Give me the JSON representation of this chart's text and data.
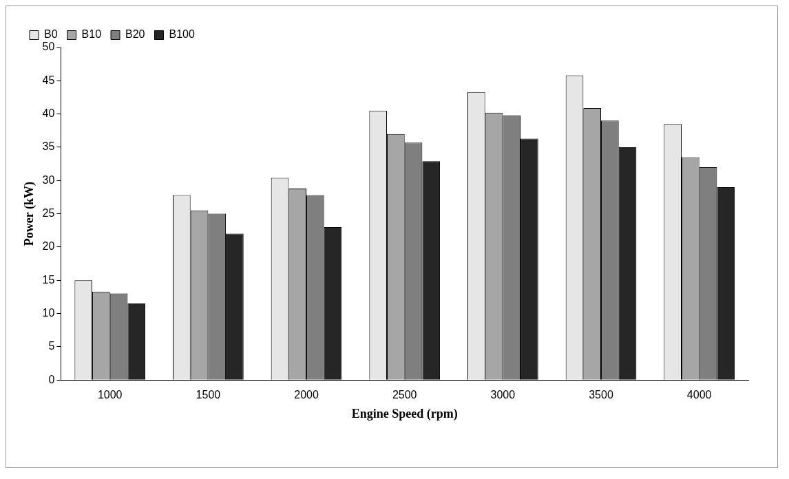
{
  "chart_data": {
    "type": "bar",
    "xlabel": "Engine Speed (rpm)",
    "ylabel": "Power (kW)",
    "categories": [
      "1000",
      "1500",
      "2000",
      "2500",
      "3000",
      "3500",
      "4000"
    ],
    "series": [
      {
        "name": "B0",
        "color": "#e6e6e6",
        "values": [
          15,
          27.8,
          30.4,
          40.5,
          43.3,
          45.8,
          38.5
        ]
      },
      {
        "name": "B10",
        "color": "#a6a6a6",
        "values": [
          13.3,
          25.5,
          28.8,
          37,
          40.2,
          40.9,
          33.5
        ]
      },
      {
        "name": "B20",
        "color": "#7f7f7f",
        "values": [
          13,
          25,
          27.8,
          35.7,
          39.8,
          39,
          32
        ]
      },
      {
        "name": "B100",
        "color": "#262626",
        "values": [
          11.5,
          22,
          23,
          32.9,
          36.3,
          35,
          29
        ]
      }
    ],
    "ylim": [
      0,
      50
    ],
    "yticks": [
      0,
      5,
      10,
      15,
      20,
      25,
      30,
      35,
      40,
      45,
      50
    ],
    "grid": false,
    "legend": "top left"
  }
}
